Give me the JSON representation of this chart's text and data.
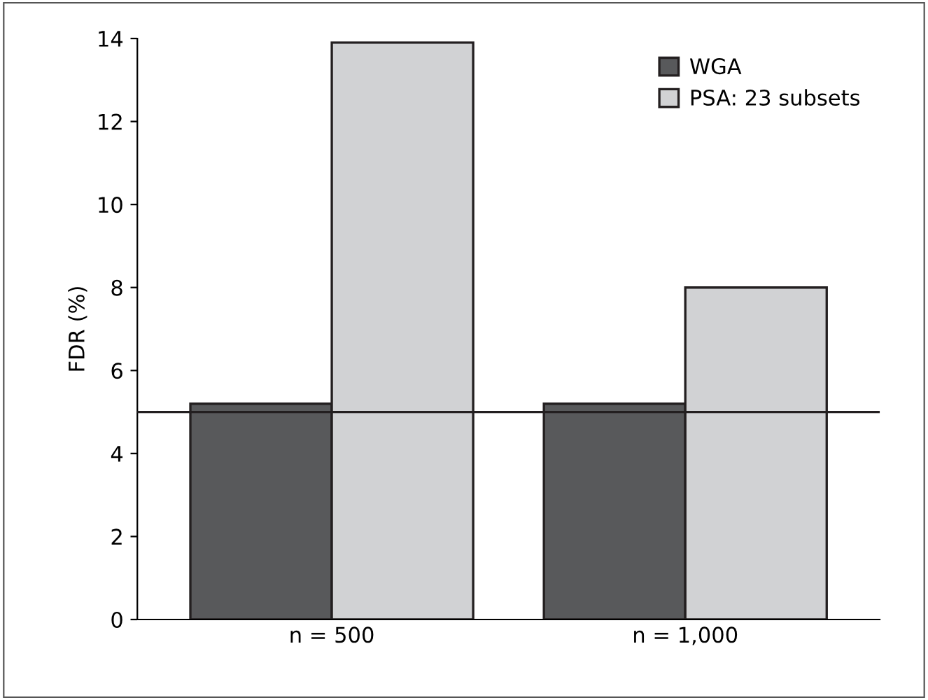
{
  "chart_data": {
    "type": "bar",
    "ylabel": "FDR (%)",
    "categories": [
      "n = 500",
      "n = 1,000"
    ],
    "series": [
      {
        "name": "WGA",
        "color": "#58595b",
        "values": [
          5.2,
          5.2
        ]
      },
      {
        "name": "PSA: 23 subsets",
        "color": "#d1d2d4",
        "values": [
          13.9,
          8.0
        ]
      }
    ],
    "ylim": [
      0,
      14
    ],
    "yticks": [
      0,
      2,
      4,
      6,
      8,
      10,
      12,
      14
    ],
    "ref_lines": [
      {
        "axis": "y",
        "value": 5,
        "color": "#231f20"
      }
    ],
    "legend": "top right",
    "grid": false
  }
}
